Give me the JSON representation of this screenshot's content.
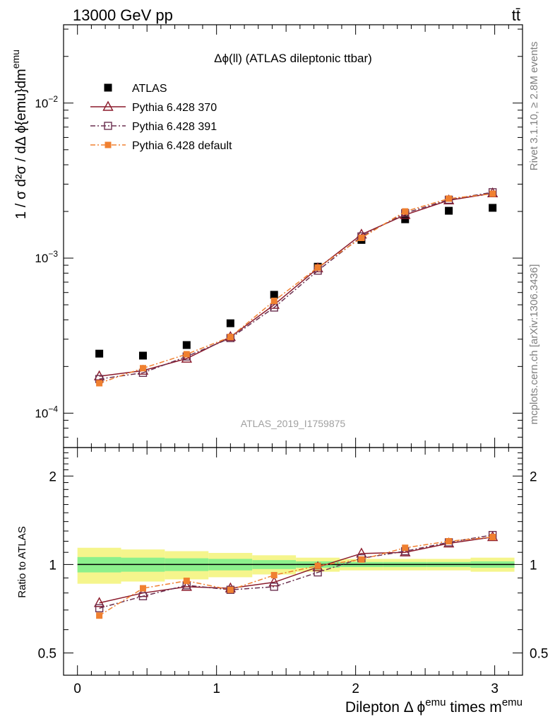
{
  "header": {
    "left": "13000 GeV pp",
    "right": "tt̄"
  },
  "side_labels": {
    "rivet": "Rivet 3.1.10, ≥ 2.8M events",
    "mcplots": "mcplots.cern.ch [arXiv:1306.3436]"
  },
  "colors": {
    "atlas": "#000000",
    "py370": "#8b1a2b",
    "py391": "#6b3050",
    "pydefault": "#f08030",
    "band_inner": "#8cf08c",
    "band_outer": "#f5f58c"
  },
  "chart_data": [
    {
      "type": "scatter",
      "title": "Δϕ(ll) (ATLAS dileptonic ttbar)",
      "watermark": "ATLAS_2019_I1759875",
      "ylabel": "1 / σ  d²σ / dΔ ϕ{emu}dm^emu",
      "yscale": "log",
      "ylim": [
        6e-05,
        0.032
      ],
      "xlim": [
        -0.1,
        3.2
      ],
      "yticks": [
        {
          "value": 0.0001,
          "base": "10",
          "exp": "−4"
        },
        {
          "value": 0.001,
          "base": "10",
          "exp": "−3"
        },
        {
          "value": 0.01,
          "base": "10",
          "exp": "−2"
        }
      ],
      "x": [
        0.157,
        0.471,
        0.785,
        1.1,
        1.414,
        1.728,
        2.042,
        2.356,
        2.67,
        2.985
      ],
      "series": [
        {
          "name": "ATLAS",
          "key": "atlas",
          "marker": "square-filled",
          "values": [
            0.000242,
            0.000235,
            0.000275,
            0.00038,
            0.00058,
            0.00088,
            0.00131,
            0.00178,
            0.00202,
            0.00211
          ]
        },
        {
          "name": "Pythia 6.428 370",
          "key": "py370",
          "marker": "triangle-open",
          "line": "solid",
          "values": [
            0.000173,
            0.000188,
            0.000225,
            0.00031,
            0.0005,
            0.00086,
            0.00142,
            0.0019,
            0.00236,
            0.00262
          ]
        },
        {
          "name": "Pythia 6.428 391",
          "key": "py391",
          "marker": "square-open",
          "line": "dashdot",
          "values": [
            0.000166,
            0.000182,
            0.000232,
            0.000305,
            0.00048,
            0.00083,
            0.00138,
            0.00195,
            0.00238,
            0.00266
          ]
        },
        {
          "name": "Pythia 6.428 default",
          "key": "pydefault",
          "marker": "square-filled-small",
          "line": "dashdot",
          "values": [
            0.000156,
            0.000195,
            0.00024,
            0.00031,
            0.00053,
            0.00087,
            0.00135,
            0.002,
            0.00242,
            0.0026
          ]
        }
      ]
    },
    {
      "type": "scatter",
      "ylabel": "Ratio to ATLAS",
      "xlabel": "Dilepton Δ ϕ^emu times m^emu",
      "yscale": "log",
      "ylim": [
        0.42,
        2.5
      ],
      "xlim": [
        -0.1,
        3.2
      ],
      "yticks": [
        0.5,
        1,
        2
      ],
      "xticks": [
        0,
        1,
        2,
        3
      ],
      "x": [
        0.157,
        0.471,
        0.785,
        1.1,
        1.414,
        1.728,
        2.042,
        2.356,
        2.67,
        2.985
      ],
      "bands": {
        "edges": [
          0.0,
          0.314,
          0.628,
          0.942,
          1.257,
          1.571,
          1.885,
          2.199,
          2.513,
          2.827,
          3.142
        ],
        "inner": [
          0.06,
          0.055,
          0.05,
          0.045,
          0.035,
          0.025,
          0.02,
          0.02,
          0.02,
          0.025
        ],
        "outer": [
          0.14,
          0.125,
          0.11,
          0.095,
          0.075,
          0.055,
          0.045,
          0.045,
          0.045,
          0.055
        ]
      },
      "series": [
        {
          "name": "Pythia 6.428 370",
          "key": "py370",
          "marker": "triangle-open",
          "line": "solid",
          "values": [
            0.74,
            0.8,
            0.84,
            0.83,
            0.87,
            0.98,
            1.09,
            1.1,
            1.18,
            1.24
          ]
        },
        {
          "name": "Pythia 6.428 391",
          "key": "py391",
          "marker": "square-open",
          "line": "dashdot",
          "values": [
            0.71,
            0.78,
            0.85,
            0.82,
            0.84,
            0.94,
            1.05,
            1.11,
            1.19,
            1.26
          ]
        },
        {
          "name": "Pythia 6.428 default",
          "key": "pydefault",
          "marker": "square-filled-small",
          "line": "dashdot",
          "values": [
            0.67,
            0.83,
            0.88,
            0.82,
            0.92,
            0.99,
            1.04,
            1.14,
            1.2,
            1.24
          ]
        }
      ]
    }
  ]
}
